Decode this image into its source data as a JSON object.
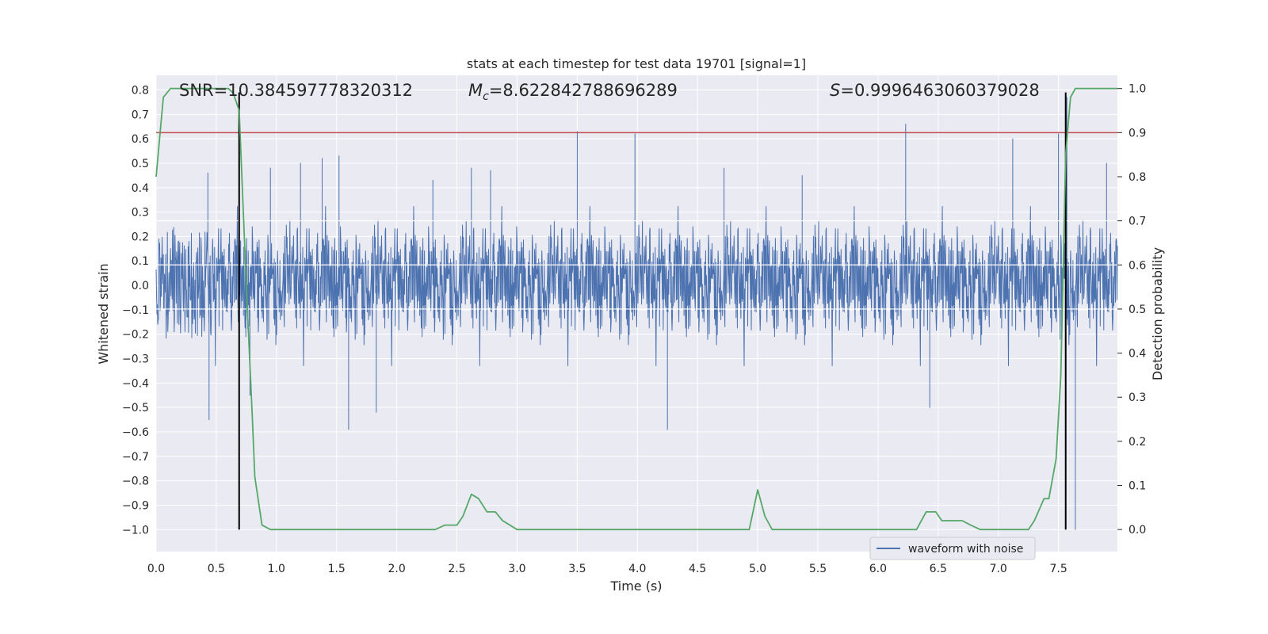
{
  "chart_data": {
    "type": "line",
    "title": "stats at each timestep for test data 19701 [signal=1]",
    "xlabel": "Time (s)",
    "ylabel": "Whitened strain",
    "y2label": "Detection probability",
    "xlim": [
      0.0,
      7.99
    ],
    "ylim": [
      -1.09,
      0.86
    ],
    "y2lim": [
      -0.05,
      1.03
    ],
    "x_ticks": [
      "0.0",
      "0.5",
      "1.0",
      "1.5",
      "2.0",
      "2.5",
      "3.0",
      "3.5",
      "4.0",
      "4.5",
      "5.0",
      "5.5",
      "6.0",
      "6.5",
      "7.0",
      "7.5"
    ],
    "y_ticks": [
      "0.8",
      "0.7",
      "0.6",
      "0.5",
      "0.4",
      "0.3",
      "0.2",
      "0.1",
      "0.0",
      "−0.1",
      "−0.2",
      "−0.3",
      "−0.4",
      "−0.5",
      "−0.6",
      "−0.7",
      "−0.8",
      "−0.9",
      "−1.0"
    ],
    "y2_ticks": [
      "1.0",
      "0.9",
      "0.8",
      "0.7",
      "0.6",
      "0.5",
      "0.4",
      "0.3",
      "0.2",
      "0.1",
      "0.0"
    ],
    "grid": true,
    "legend": {
      "placement": "lower-right",
      "entries": [
        "waveform with noise"
      ]
    },
    "annotations": {
      "snr": "SNR=10.384597778320312",
      "mc_symbol": "M",
      "mc_sub": "c",
      "mc_value": "=8.622842788696289",
      "s_symbol": "S",
      "s_value": "=0.9996463060379028"
    },
    "threshold": {
      "y2": 0.9,
      "color": "#c44e52"
    },
    "vertical_markers": [
      0.69,
      7.56
    ],
    "white_lines_y2": [
      0.7,
      0.6,
      0.5
    ],
    "series": [
      {
        "name": "waveform with noise",
        "color": "#4c72b0",
        "typical_amplitude": 0.26,
        "spikes": [
          [
            0.43,
            0.46
          ],
          [
            0.44,
            -0.55
          ],
          [
            0.78,
            -0.45
          ],
          [
            0.95,
            0.48
          ],
          [
            1.2,
            0.5
          ],
          [
            1.38,
            0.52
          ],
          [
            1.52,
            0.53
          ],
          [
            1.6,
            -0.59
          ],
          [
            1.83,
            -0.52
          ],
          [
            2.3,
            0.43
          ],
          [
            2.62,
            0.48
          ],
          [
            2.78,
            0.47
          ],
          [
            3.5,
            0.63
          ],
          [
            3.98,
            0.62
          ],
          [
            4.25,
            -0.59
          ],
          [
            4.72,
            0.48
          ],
          [
            5.37,
            0.45
          ],
          [
            6.23,
            0.66
          ],
          [
            6.43,
            -0.5
          ],
          [
            7.12,
            0.6
          ],
          [
            7.5,
            0.62
          ],
          [
            7.57,
            0.77
          ],
          [
            7.64,
            -1.0
          ],
          [
            7.9,
            0.5
          ]
        ]
      },
      {
        "name": "Detection probability",
        "color": "#55a868",
        "axis": "right",
        "x": [
          0.0,
          0.06,
          0.12,
          0.18,
          0.3,
          0.45,
          0.6,
          0.64,
          0.69,
          0.75,
          0.8,
          0.82,
          0.88,
          0.95,
          1.1,
          1.4,
          1.6,
          1.75,
          1.9,
          2.1,
          2.2,
          2.32,
          2.4,
          2.5,
          2.55,
          2.62,
          2.68,
          2.75,
          2.82,
          2.88,
          3.0,
          3.1,
          3.4,
          3.75,
          3.95,
          4.2,
          4.5,
          4.7,
          4.85,
          4.93,
          5.0,
          5.06,
          5.12,
          5.25,
          5.4,
          5.8,
          6.0,
          6.2,
          6.32,
          6.4,
          6.48,
          6.53,
          6.62,
          6.7,
          6.77,
          6.85,
          6.98,
          7.1,
          7.25,
          7.3,
          7.38,
          7.42,
          7.48,
          7.52,
          7.56,
          7.6,
          7.64,
          7.7,
          7.8,
          7.99
        ],
        "values": [
          0.8,
          0.98,
          1.0,
          1.0,
          1.0,
          1.0,
          1.0,
          0.99,
          0.95,
          0.55,
          0.25,
          0.12,
          0.01,
          0.0,
          0.0,
          0.0,
          0.0,
          0.0,
          0.0,
          0.0,
          0.0,
          0.0,
          0.01,
          0.01,
          0.03,
          0.08,
          0.07,
          0.04,
          0.04,
          0.02,
          0.0,
          0.0,
          0.0,
          0.0,
          0.0,
          0.0,
          0.0,
          0.0,
          0.0,
          0.0,
          0.09,
          0.03,
          0.0,
          0.0,
          0.0,
          0.0,
          0.0,
          0.0,
          0.0,
          0.04,
          0.04,
          0.02,
          0.02,
          0.02,
          0.01,
          0.0,
          0.0,
          0.0,
          0.0,
          0.02,
          0.07,
          0.07,
          0.16,
          0.35,
          0.85,
          0.98,
          1.0,
          1.0,
          1.0,
          1.0
        ]
      }
    ]
  }
}
